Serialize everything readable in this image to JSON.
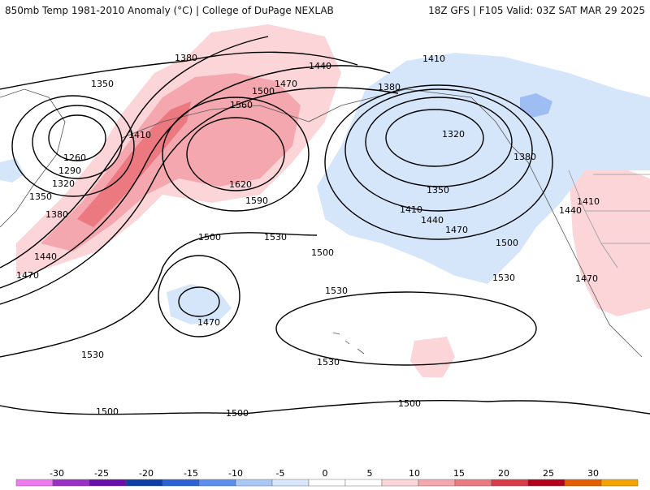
{
  "header": {
    "title_left": "850mb Temp 1981-2010 Anomaly (°C) | College of DuPage NEXLAB",
    "title_right": "18Z GFS | F105 Valid: 03Z SAT MAR 29 2025"
  },
  "contour_labels": [
    "1380",
    "1440",
    "1410",
    "1350",
    "1380",
    "1500",
    "1470",
    "1560",
    "1410",
    "1260",
    "1290",
    "1320",
    "1350",
    "1380",
    "1440",
    "1470",
    "1620",
    "1590",
    "1530",
    "1500",
    "1470",
    "1500",
    "1530",
    "1530",
    "1320",
    "1350",
    "1410",
    "1440",
    "1470",
    "1500",
    "1530",
    "1380",
    "1410",
    "1440",
    "1470",
    "1530",
    "1500",
    "1500",
    "1500"
  ],
  "legend": {
    "ticks": [
      "-30",
      "-25",
      "-20",
      "-15",
      "-10",
      "-5",
      "0",
      "5",
      "10",
      "15",
      "20",
      "25",
      "30"
    ],
    "colors": [
      "#f07bf0",
      "#9b30c8",
      "#6a0dad",
      "#0c3fa8",
      "#2b63d6",
      "#5b8ff0",
      "#a9c8f5",
      "#d8e6fb",
      "#ffffff",
      "#ffffff",
      "#fbd5d8",
      "#f4a7ae",
      "#ec7880",
      "#d93b47",
      "#b4001c",
      "#e65c00",
      "#f5a300"
    ]
  },
  "colors": {
    "warm_light": "#fbd5d8",
    "warm_mid": "#f4a7ae",
    "warm_strong": "#ec7880",
    "cold_light": "#d6e6fa",
    "cold_mid": "#9dbdf3",
    "cold_strong": "#6f97e8"
  }
}
